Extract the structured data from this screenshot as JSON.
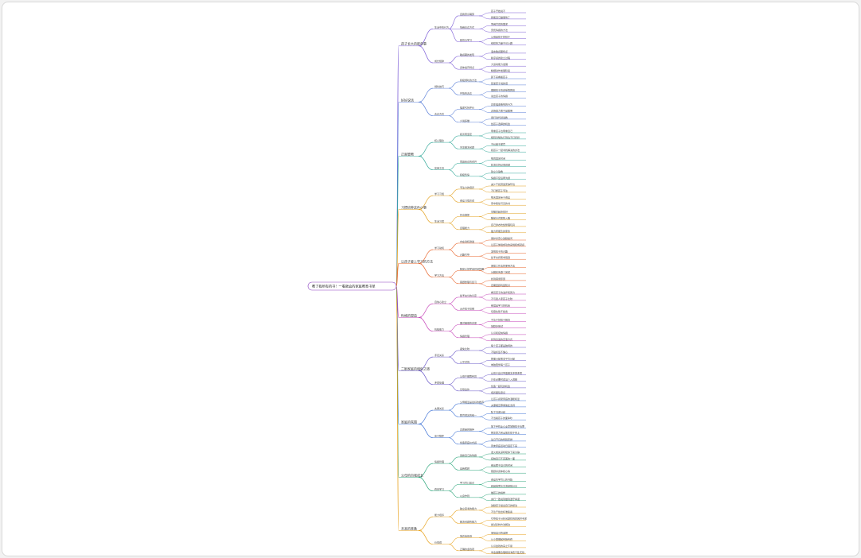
{
  "root": {
    "label": "教了我所有的书！一看就会的家庭教育书单"
  },
  "branches": [
    {
      "label": "孩子长大的那些事",
      "color": "#7b5cd6",
      "children": [
        {
          "label": "生活中的行为",
          "children": [
            {
              "label": "自我意识萌芽",
              "children": [
                "孩子开始说不",
                "我能自己做事情了"
              ]
            },
            {
              "label": "情绪表达方式",
              "children": [
                "哭闹背后的需求",
                "安抚情绪的方法"
              ]
            },
            {
              "label": "模仿与学习",
              "children": [
                "父母是孩子的镜子",
                "榜样的力量不可小觑"
              ]
            }
          ]
        },
        {
          "label": "成长规律",
          "children": [
            {
              "label": "敏感期的发现",
              "children": [
                "语言敏感期特点",
                "秩序感的建立过程"
              ]
            },
            {
              "label": "身体发育特点",
              "children": [
                "大运动能力发展",
                "精细动作发展阶段"
              ]
            }
          ]
        }
      ]
    },
    {
      "label": "好好说话",
      "color": "#5a7fd8",
      "children": [
        {
          "label": "倾听技巧",
          "children": [
            {
              "label": "积极倾听的方法",
              "children": [
                "蹲下来看着孩子",
                "复述孩子说的话"
              ]
            },
            {
              "label": "共情的表达",
              "children": [
                "理解孩子的感受再回应",
                "说出孩子的情绪"
              ]
            }
          ]
        },
        {
          "label": "表达方式",
          "children": [
            {
              "label": "描述代替评价",
              "children": [
                "具体描述看到的行为",
                "表扬努力而不是聪明"
              ]
            },
            {
              "label": "少说多做",
              "children": [
                "用行动代替说教",
                "给孩子选择的机会"
              ]
            }
          ]
        }
      ]
    },
    {
      "label": "正面管教",
      "color": "#33a99a",
      "children": [
        {
          "label": "核心理念",
          "children": [
            {
              "label": "和善而坚定",
              "children": [
                "尊重孩子也尊重自己",
                "规则清晰执行到位不打折扣"
              ]
            },
            {
              "label": "关注解决问题",
              "children": [
                "不纠结于惩罚",
                "和孩子一起寻找解决的办法"
              ]
            }
          ]
        },
        {
          "label": "实用工具",
          "children": [
            {
              "label": "家庭会议的召开",
              "children": [
                "每周固定时间",
                "轮流主持记录感谢"
              ]
            },
            {
              "label": "积极暂停",
              "children": [
                "建立冷静角",
                "情绪平复后再沟通"
              ]
            }
          ]
        }
      ]
    },
    {
      "label": "习惯培养这件小事",
      "color": "#e3a01f",
      "children": [
        {
          "label": "学习习惯",
          "children": [
            {
              "label": "专注力的培养",
              "children": [
                "减少干扰营造安静环境",
                "不打断孩子专注"
              ]
            },
            {
              "label": "阅读习惯养成",
              "children": [
                "每天固定亲子阅读",
                "家中随处可见的书"
              ]
            }
          ]
        },
        {
          "label": "生活习惯",
          "children": [
            {
              "label": "作息规律",
              "children": [
                "早睡早起身体好",
                "睡前仪式帮助入睡"
              ]
            },
            {
              "label": "自理能力",
              "children": [
                "自己穿衣吃饭整理玩具",
                "做力所能及的家务"
              ]
            }
          ]
        }
      ]
    },
    {
      "label": "让孩子爱上学习的方法",
      "color": "#e8642a",
      "children": [
        {
          "label": "学习动机",
          "children": [
            {
              "label": "内在动机激发",
              "children": [
                "保护好奇心鼓励提问",
                "让孩子体验成功的喜悦和成就感"
              ]
            },
            {
              "label": "兴趣引导",
              "children": [
                "发现孩子的兴趣",
                "给予支持而非强迫"
              ]
            }
          ]
        },
        {
          "label": "学习方法",
          "children": [
            {
              "label": "制定计划学会时间管理",
              "children": [
                "番茄工作法的使用方法",
                "分解任务逐个完成"
              ]
            },
            {
              "label": "错题整理与复习",
              "children": [
                "找到错误原因",
                "定期回顾巩固知识"
              ]
            }
          ]
        }
      ]
    },
    {
      "label": "性格的塑造",
      "color": "#c543b8",
      "children": [
        {
          "label": "自信心建立",
          "children": [
            {
              "label": "给予充分的肯定",
              "children": [
                "看见孩子的进步和努力",
                "不与别人家孩子比较"
              ]
            },
            {
              "label": "允许孩子犯错",
              "children": [
                "错误是学习的机会",
                "包容失败不指责"
              ]
            }
          ]
        },
        {
          "label": "抗挫能力",
          "children": [
            {
              "label": "面对困难的态度",
              "children": [
                "不急于替孩子解决",
                "鼓励多尝试"
              ]
            },
            {
              "label": "情绪管理",
              "children": [
                "认识和接纳情绪",
                "找到合适的宣泄方式"
              ]
            }
          ]
        }
      ]
    },
    {
      "label": "二胎家庭的相处之道",
      "color": "#6a58c9",
      "children": [
        {
          "label": "手足关系",
          "children": [
            {
              "label": "避免比较",
              "children": [
                "每个孩子都是独特的",
                "不贴标签不偏心"
              ]
            },
            {
              "label": "公平对待",
              "children": [
                "按需分配而非平均分配",
                "单独陪伴每个孩子"
              ]
            }
          ]
        },
        {
          "label": "矛盾处理",
          "children": [
            {
              "label": "父母不做裁判员",
              "children": [
                "让孩子自己学着解决冲突矛盾",
                "只在必要时适当介入调解"
              ]
            },
            {
              "label": "引导合作",
              "children": [
                "创造一起玩的机会",
                "培养团队意识"
              ]
            }
          ]
        }
      ]
    },
    {
      "label": "家庭的氛围",
      "color": "#3f73d6",
      "children": [
        {
          "label": "夫妻关系",
          "children": [
            {
              "label": "父母相爱是最好的教育",
              "children": [
                "让孩子感受家庭的温暖和爱",
                "夫妻相互尊重彼此支持"
              ]
            },
            {
              "label": "教育观念的统一",
              "children": [
                "私下沟通分歧",
                "不当着孩子的面争吵"
              ]
            }
          ]
        },
        {
          "label": "亲子陪伴",
          "children": [
            {
              "label": "高质量的陪伴",
              "children": [
                "放下手机全心全意地陪孩子玩耍",
                "把注意力完全放在孩子身上"
              ]
            },
            {
              "label": "创造家庭仪式感",
              "children": [
                "生日节日的特别安排",
                "周末家庭活动日固定下来"
              ]
            }
          ]
        }
      ]
    },
    {
      "label": "父母的自我成长",
      "color": "#2aa57a",
      "children": [
        {
          "label": "情绪管理",
          "children": [
            {
              "label": "觉察自己的情绪",
              "children": [
                "发火前先深呼吸停下来冷静",
                "接纳自己不完美的一面"
              ]
            },
            {
              "label": "自我照顾",
              "children": [
                "留出属于自己的时间",
                "照顾好身体和心情"
              ]
            }
          ]
        },
        {
          "label": "终身学习",
          "children": [
            {
              "label": "学习育儿知识",
              "children": [
                "阅读科学育儿的书籍",
                "和其他家长交流经验分享"
              ]
            },
            {
              "label": "以身作则",
              "children": [
                "做孩子的榜样",
                "言行一致说到做到遵守承诺"
              ]
            }
          ]
        }
      ]
    },
    {
      "label": "未来的准备",
      "color": "#e8a21c",
      "children": [
        {
          "label": "能力培养",
          "children": [
            {
              "label": "独立思考的能力",
              "children": [
                "鼓励孩子提出自己的想法",
                "不急于给出标准答案"
              ]
            },
            {
              "label": "解决问题的能力",
              "children": [
                "引导孩子分析问题找到原因并寻求",
                "尝试多种方法解决"
              ]
            }
          ]
        },
        {
          "label": "价值观",
          "children": [
            {
              "label": "培养责任感",
              "children": [
                "承担自己的选择",
                "从小事做起有始有终"
              ]
            },
            {
              "label": "正确的金钱观",
              "children": [
                "认识金钱的来之不易",
                "学会储蓄合理规划消费不乱花钱"
              ]
            }
          ]
        }
      ]
    }
  ]
}
